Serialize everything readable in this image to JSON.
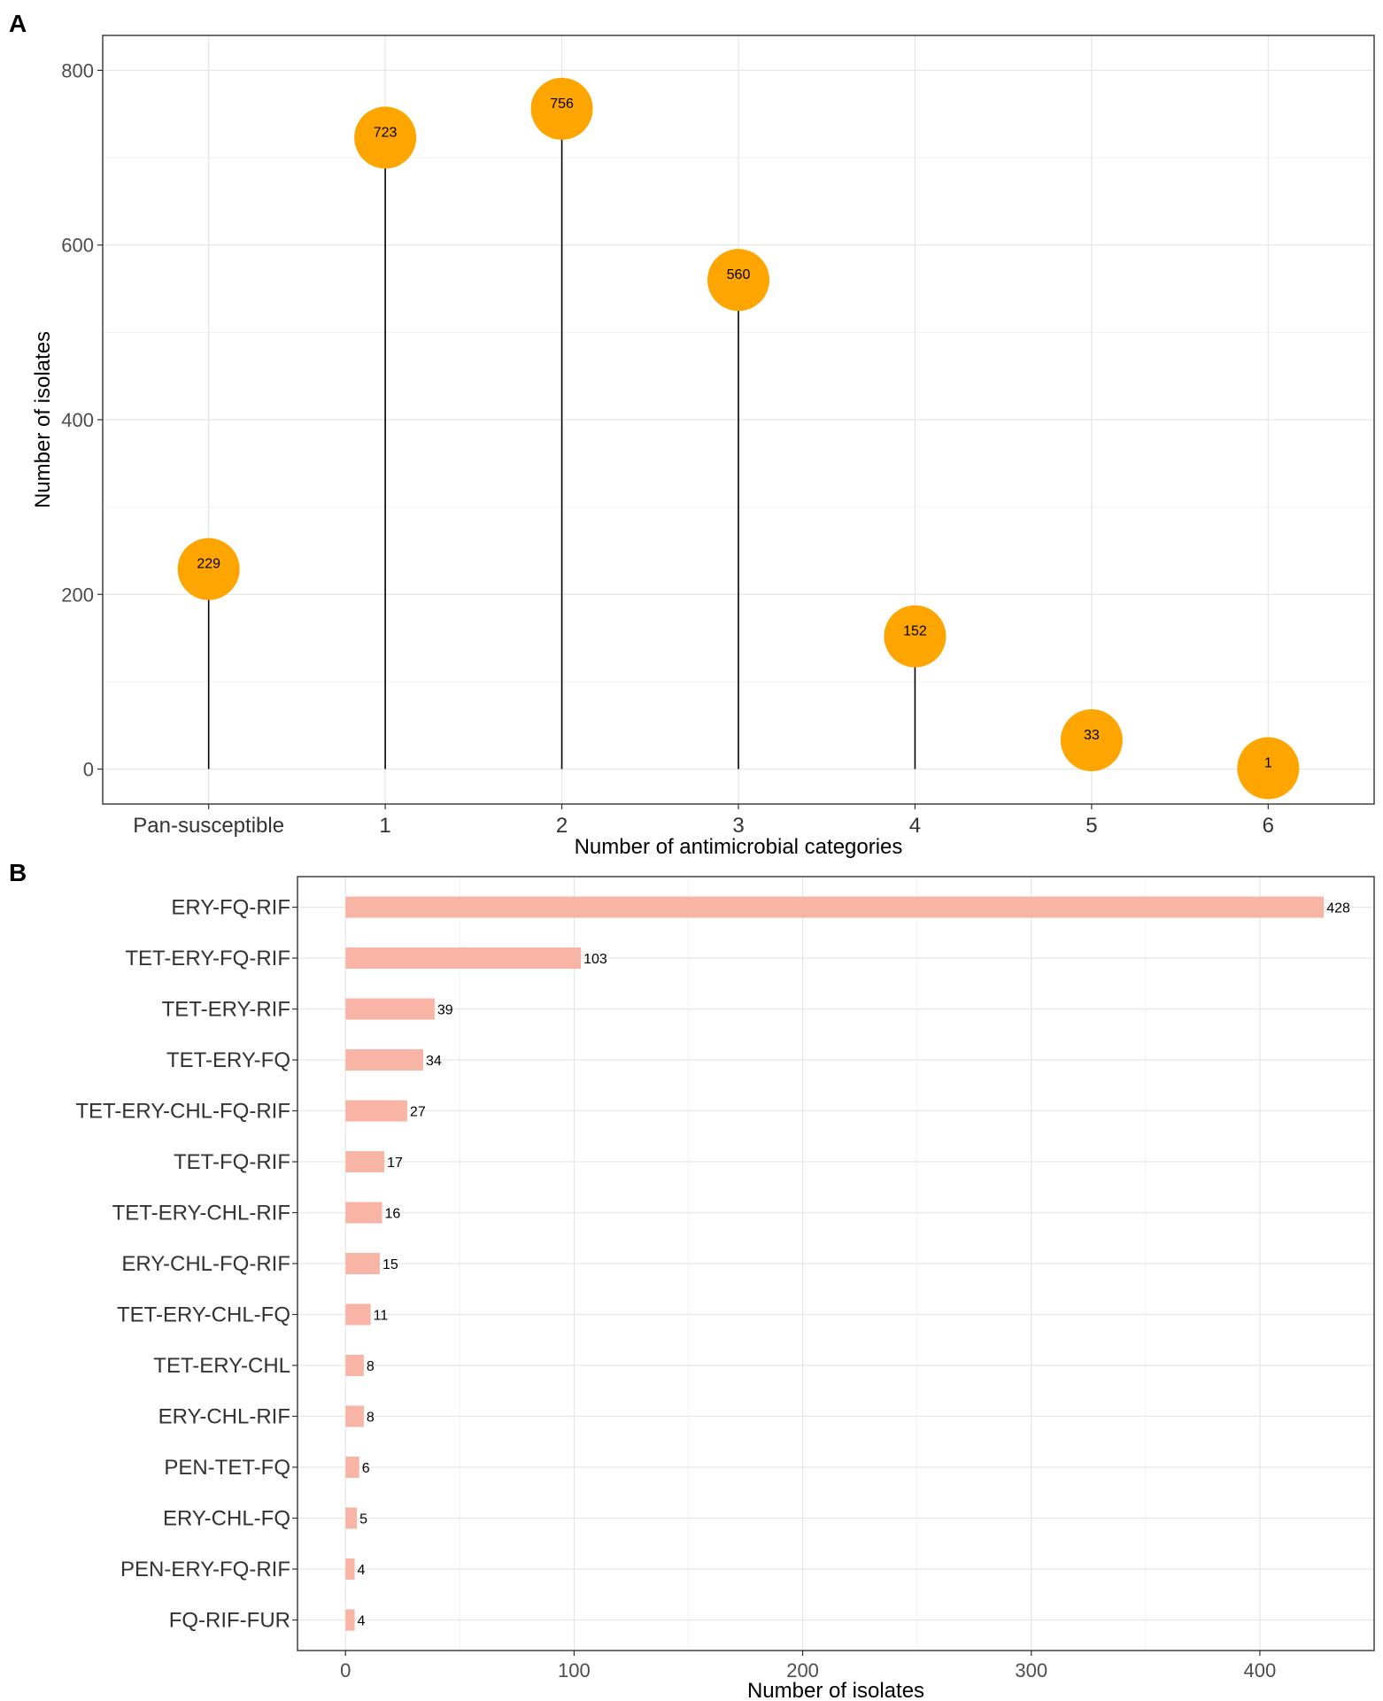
{
  "colors": {
    "bubble": "#FFA500",
    "bar": "#F8B4A4",
    "grid_major": "#E6E6E6",
    "grid_minor": "#F3F3F3",
    "axis": "#333333",
    "stem": "#000000"
  },
  "chart_data": [
    {
      "panel": "A",
      "type": "lollipop",
      "categories": [
        "Pan-susceptible",
        "1",
        "2",
        "3",
        "4",
        "5",
        "6"
      ],
      "values": [
        229,
        723,
        756,
        560,
        152,
        33,
        1
      ],
      "xlabel": "Number of antimicrobial categories",
      "ylabel": "Number of isolates",
      "ylim": [
        -40,
        840
      ],
      "yticks": [
        0,
        200,
        400,
        600,
        800
      ],
      "grid": true
    },
    {
      "panel": "B",
      "type": "bar",
      "orientation": "horizontal",
      "categories": [
        "ERY-FQ-RIF",
        "TET-ERY-FQ-RIF",
        "TET-ERY-RIF",
        "TET-ERY-FQ",
        "TET-ERY-CHL-FQ-RIF",
        "TET-FQ-RIF",
        "TET-ERY-CHL-RIF",
        "ERY-CHL-FQ-RIF",
        "TET-ERY-CHL-FQ",
        "TET-ERY-CHL",
        "ERY-CHL-RIF",
        "PEN-TET-FQ",
        "ERY-CHL-FQ",
        "PEN-ERY-FQ-RIF",
        "FQ-RIF-FUR"
      ],
      "values": [
        428,
        103,
        39,
        34,
        27,
        17,
        16,
        15,
        11,
        8,
        8,
        6,
        5,
        4,
        4
      ],
      "xlabel": "Number of isolates",
      "ylabel": "",
      "xlim": [
        -21,
        450
      ],
      "xticks": [
        0,
        100,
        200,
        300,
        400
      ],
      "grid": true
    }
  ]
}
